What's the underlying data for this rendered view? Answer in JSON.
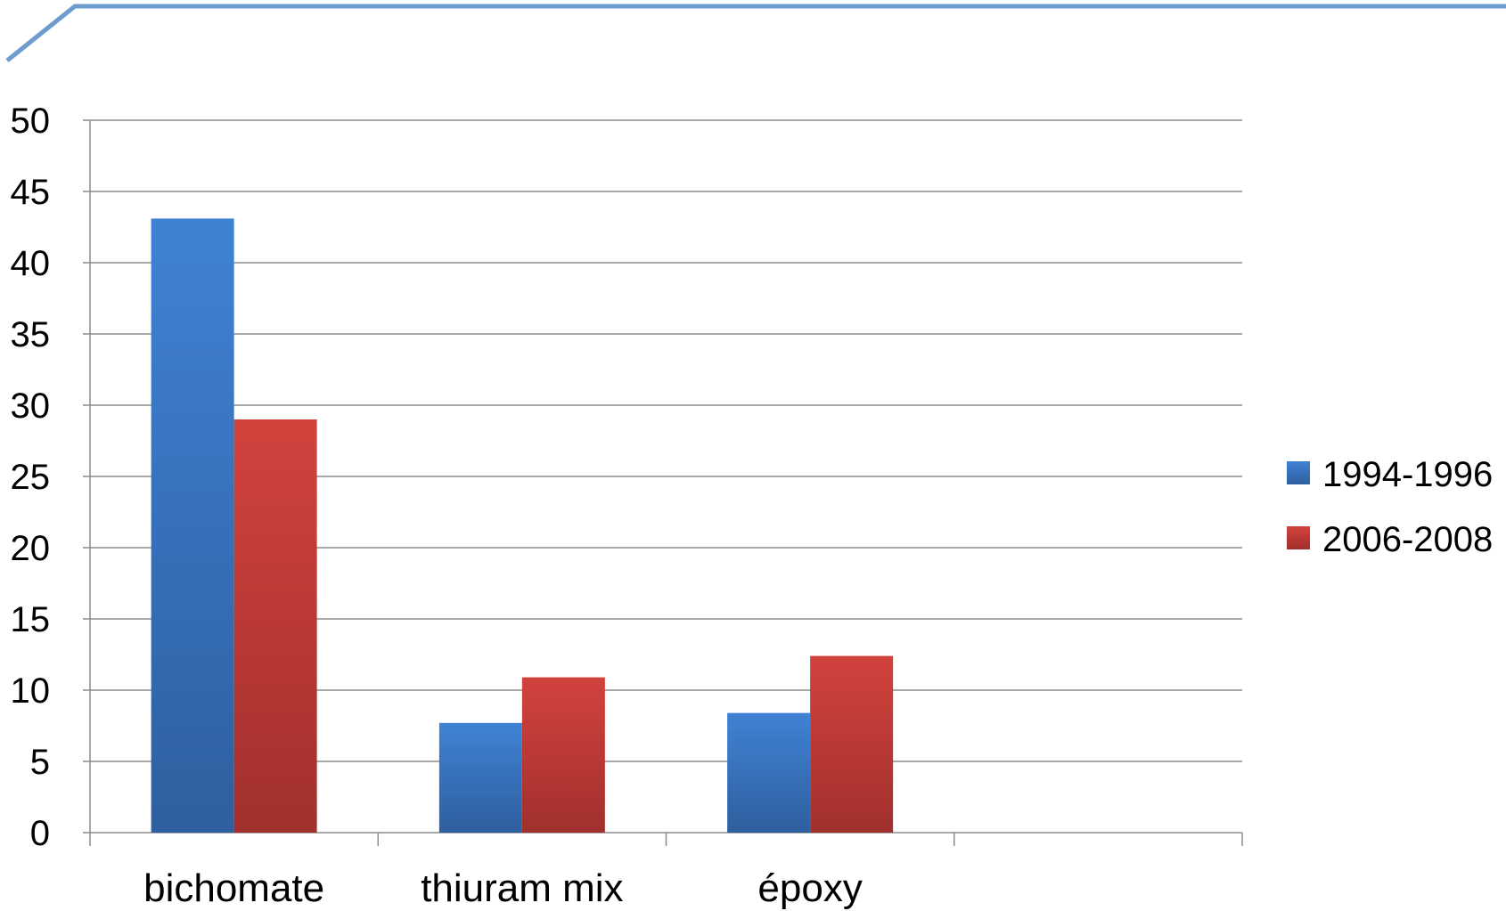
{
  "chart_data": {
    "type": "bar",
    "categories": [
      "bichomate",
      "thiuram mix",
      "époxy",
      ""
    ],
    "series": [
      {
        "name": "1994-1996",
        "values": [
          43.1,
          7.7,
          8.4,
          null
        ],
        "color": "#3f7fcf"
      },
      {
        "name": "2006-2008",
        "values": [
          29.0,
          10.9,
          12.4,
          null
        ],
        "color": "#c8403c"
      }
    ],
    "ylim": [
      0,
      50
    ],
    "yticks": [
      "0",
      "5",
      "10",
      "15",
      "20",
      "25",
      "30",
      "35",
      "40",
      "45",
      "50"
    ],
    "grid": true,
    "legend_position": "right",
    "title": "",
    "xlabel": "",
    "ylabel": ""
  },
  "colors": {
    "series_1": "#3f7fcf",
    "series_1_dark": "#2f5f9f",
    "series_2": "#c8403c",
    "series_2_dark": "#a1302d",
    "grid": "#8c8c8c",
    "decor_line": "#6d9ccf"
  }
}
